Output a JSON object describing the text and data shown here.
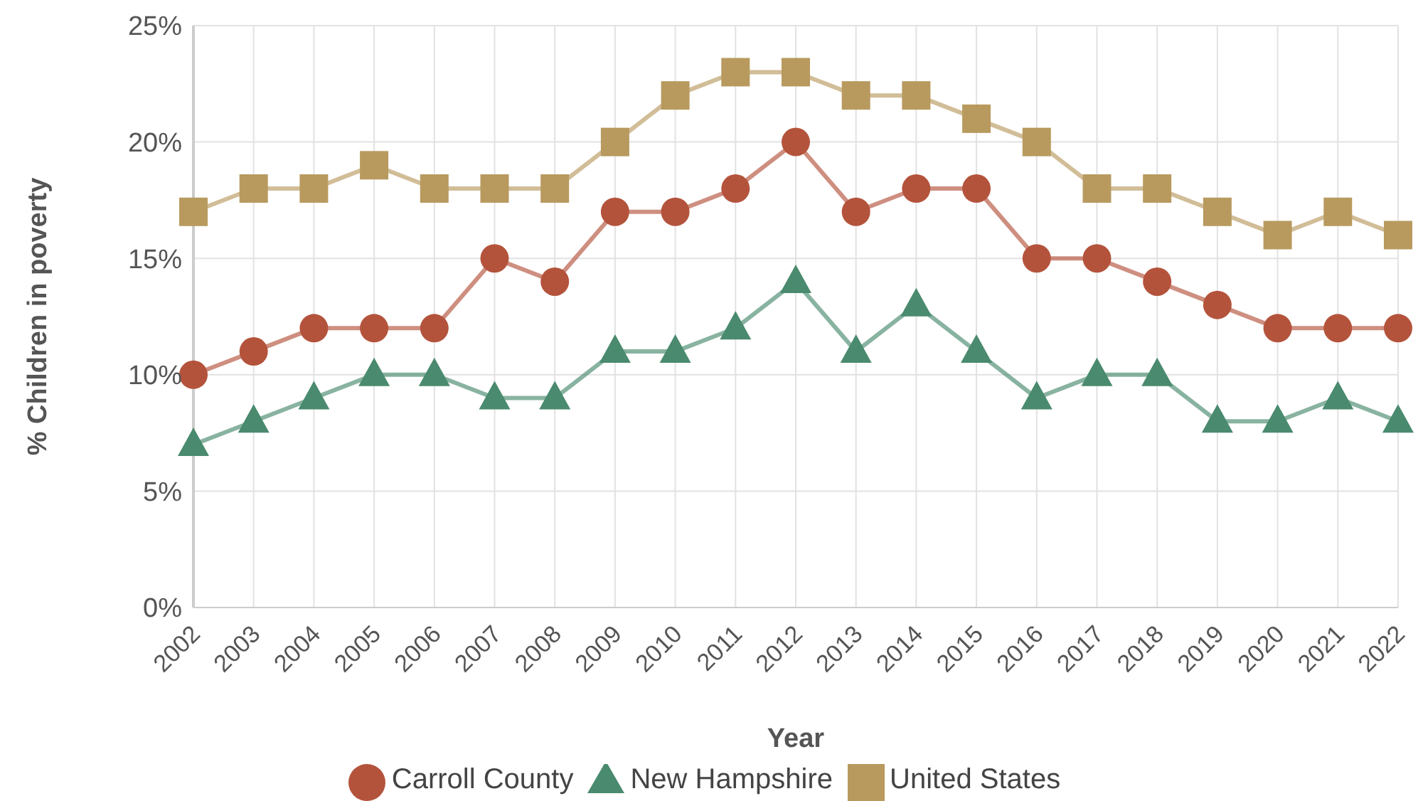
{
  "chart_data": {
    "type": "line",
    "xlabel": "Year",
    "ylabel": "% Children in poverty",
    "categories": [
      "2002",
      "2003",
      "2004",
      "2005",
      "2006",
      "2007",
      "2008",
      "2009",
      "2010",
      "2011",
      "2012",
      "2013",
      "2014",
      "2015",
      "2016",
      "2017",
      "2018",
      "2019",
      "2020",
      "2021",
      "2022"
    ],
    "series": [
      {
        "name": "Carroll County",
        "color": "#b4533c",
        "marker": "circle",
        "values": [
          10,
          11,
          12,
          12,
          12,
          15,
          14,
          17,
          17,
          18,
          20,
          17,
          18,
          18,
          15,
          15,
          14,
          13,
          12,
          12,
          12
        ]
      },
      {
        "name": "New Hampshire",
        "color": "#4a8a6e",
        "marker": "triangle",
        "values": [
          7,
          8,
          9,
          10,
          10,
          9,
          9,
          11,
          11,
          12,
          14,
          11,
          13,
          11,
          9,
          10,
          10,
          8,
          8,
          9,
          8
        ]
      },
      {
        "name": "United States",
        "color": "#b89a5f",
        "marker": "square",
        "values": [
          17,
          18,
          18,
          19,
          18,
          18,
          18,
          20,
          22,
          23,
          23,
          22,
          22,
          21,
          20,
          18,
          18,
          17,
          16,
          17,
          16
        ]
      }
    ],
    "ylim": [
      0,
      25
    ],
    "yticks": [
      {
        "value": 0,
        "label": "0%"
      },
      {
        "value": 5,
        "label": "5%"
      },
      {
        "value": 10,
        "label": "10%"
      },
      {
        "value": 15,
        "label": "15%"
      },
      {
        "value": 20,
        "label": "20%"
      },
      {
        "value": 25,
        "label": "25%"
      }
    ],
    "grid": true,
    "legend": "bottom"
  }
}
